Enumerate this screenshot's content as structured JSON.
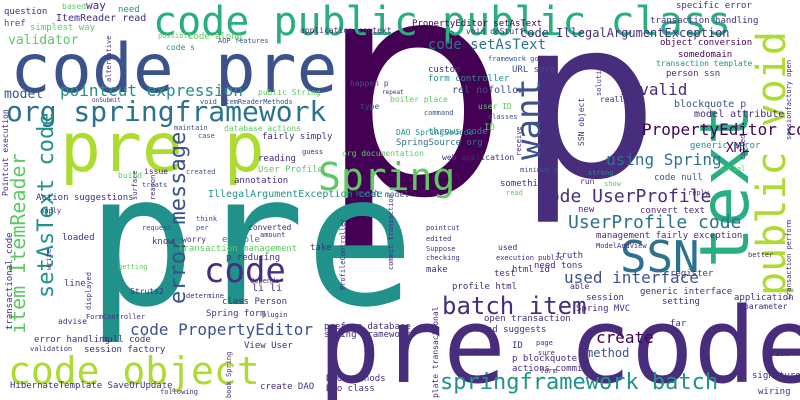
{
  "palette": {
    "dark_purple": "#440154",
    "indigo": "#472d7b",
    "blue": "#3b528b",
    "steel": "#2c728e",
    "teal": "#21918c",
    "green": "#28ae80",
    "light_green": "#5ec962",
    "lime": "#addc30"
  },
  "words": {
    "big_p": "p",
    "big_p2": "p",
    "pre_p": "pre p",
    "pre_code": "pre code",
    "code_pre": "code pre",
    "code_public_public_class": "code public public class",
    "pre": "pre",
    "text": "text",
    "public_void": "public void",
    "code_object": "code object",
    "org_springframework": "org springframework",
    "item_itemreader": "item ItemReader",
    "setastext_code": "setAsText code",
    "error_message": "error message",
    "ssn": "SSN",
    "spring": "Spring",
    "want": "want",
    "batch_item": "batch item",
    "springframework_batch": "springframework batch",
    "code": "code",
    "code_propertyeditor": "code PropertyEditor",
    "propertyeditor_code": "PropertyEditor code",
    "userprofile_code": "UserProfile code",
    "code_userprofile": "code UserProfile",
    "code_setastext": "code setAsText",
    "code_illegalargumentexception": "code IllegalArgumentException",
    "pointcut_expression": "pointcut expression",
    "using_spring": "using Spring",
    "invalid": "invalid",
    "used_interface": "used interface",
    "create": "create",
    "model": "model",
    "validator": "validator",
    "xml": "XML",
    "method": "method",
    "question": "question",
    "way": "way",
    "based": "based",
    "itemreader_read": "ItemReader read",
    "need": "need",
    "href": "href",
    "simplest_way": "simplest way",
    "code_along": "code along",
    "possible": "possible",
    "code_s": "code s",
    "application_context": "application context",
    "void_dostuff": "void doStuff",
    "specific_error": "specific error",
    "transaction_handling": "transaction handling",
    "propertyeditor_settastext": "PropertyEditor setAsText",
    "framework_go": "framework go",
    "object_conversion": "object conversion",
    "somedomain": "somedomain",
    "transaction_template": "transaction template",
    "person_ssn": "person ssn",
    "custom": "custom",
    "form_controller": "form controller",
    "url_sure": "URL sure",
    "rel_nofollow": "rel nofollow",
    "happen_p": "happen p",
    "boiler_place": "boiler place",
    "public_string": "public String",
    "void_itemreadermethods": "void itemReaderMethods",
    "user_id": "user ID",
    "model_attribute": "model attribute",
    "blockquote_p": "blockquote p",
    "database_actions": "database actions",
    "fairly_simply": "fairly simply",
    "dao_springsource": "DAO SpringSource",
    "throws_code": "throws code",
    "springsource_org": "SpringSource org",
    "org_documentation": "org documentation",
    "web_application": "web application",
    "generic_error": "generic error",
    "code_null": "code null",
    "something": "something",
    "user_profile": "User Profile",
    "annotation": "annotation",
    "reading": "reading",
    "illegalargumentexception_code": "IllegalArgumentException code",
    "model_model": "Model model",
    "action_suggestions": "Action suggestions",
    "convert_text": "convert text",
    "management_fairly_exception": "management fairly exception",
    "example": "example",
    "transaction_management": "Transaction management",
    "p_reducing": "p reducing",
    "know": "know",
    "loaded": "loaded",
    "li_li": "li li",
    "spring_form": "Spring form",
    "class_person": "class Person",
    "spring_framework": "spring framework",
    "preform_database": "preform database",
    "profile_html": "profile html",
    "html_id": "html id",
    "need_tons": "need tons",
    "register": "register",
    "generic_interface": "generic interface",
    "session": "session",
    "setting": "setting",
    "spring_mvc": "Spring MVC",
    "open_transaction": "open transaction",
    "hand_suggests": "hand suggests",
    "null_code": "null code",
    "error_handling": "error handling",
    "session_factory": "session factory",
    "view_user": "View User",
    "transactional_code": "transactional code",
    "hibernatetemplate": "HibernateTemplate SaveOrUpdate",
    "dao_methods": "DAO methods",
    "dao_class": "Dao class",
    "create_dao": "create DAO",
    "p_blockquote": "p blockquote",
    "actions_commit": "actions commit",
    "form": "form",
    "store": "store",
    "plate_transactional": "plate transactional",
    "signature": "signature",
    "wiring": "wiring",
    "view": "View",
    "application": "application",
    "parameter": "parameter",
    "line": "line",
    "advise": "advise",
    "validation": "validation",
    "getting": "getting",
    "build": "build",
    "issue": "issue",
    "treats": "treats",
    "created": "created",
    "reason": "reason",
    "surface": "surface",
    "struts2": "Struts2",
    "formcontroller": "FormController",
    "determine": "determine",
    "plugin": "plugin",
    "take": "take",
    "test": "test",
    "make": "make",
    "used": "used",
    "truth": "truth",
    "page": "page",
    "far": "far",
    "id": "ID",
    "sure": "sure",
    "really": "really",
    "solution": "solution",
    "run": "run",
    "strong": "strong",
    "show": "show",
    "reply": "reply",
    "edited": "edited",
    "pointcut": "pointcut",
    "suppose": "Suppose",
    "checking": "checking",
    "execution_public": "execution public",
    "modelandview": "ModelAndView",
    "actual": "actual",
    "better": "better",
    "called": "called",
    "sessionfactory_open": "sessionfactory open",
    "transaction_perform": "transaction perform",
    "minimum_p": "minimum p",
    "case": "case",
    "maintain": "maintain",
    "guess": "guess",
    "aop_features": "AOP features",
    "onsubmit": "onSubmit",
    "alternative": "alternative",
    "repeat": "repeat",
    "command": "command",
    "type": "type",
    "classes": "classes",
    "receive": "receive",
    "ssn_object": "SSN object",
    "new": "new",
    "depends": "depends",
    "worry": "worry",
    "converted": "converted",
    "amount": "amount",
    "request": "request",
    "think": "think",
    "per": "per",
    "apply": "apply",
    "write": "write",
    "displayed": "displayed",
    "profilecontroller": "ProfileController",
    "following": "following",
    "book_spring": "book Spring",
    "pointcut_execution": "Pointcut execution",
    "commit_transaction": "commit transaction",
    "able": "able",
    "read": "read"
  }
}
